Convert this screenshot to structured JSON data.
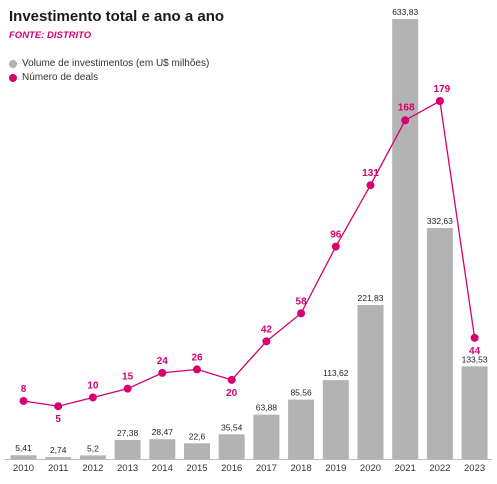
{
  "header": {
    "title": "Investimento total e ano a ano",
    "source": "FONTE: DISTRITO"
  },
  "legend": {
    "bars_label": "Volume de investimentos (em U$ milhões)",
    "deals_label": "Número de deals"
  },
  "colors": {
    "bars": "#b3b3b3",
    "deals": "#d6006e"
  },
  "chart_data": {
    "type": "bar",
    "categories": [
      "2010",
      "2011",
      "2012",
      "2013",
      "2014",
      "2015",
      "2016",
      "2017",
      "2018",
      "2019",
      "2020",
      "2021",
      "2022",
      "2023"
    ],
    "series": [
      {
        "name": "Volume de investimentos (em U$ milhões)",
        "type": "bar",
        "values": [
          5.41,
          2.74,
          5.2,
          27.38,
          28.47,
          22.6,
          35.54,
          63.88,
          85.56,
          113.62,
          221.83,
          633.83,
          332.63,
          133.53
        ],
        "labels": [
          "5,41",
          "2,74",
          "5,2",
          "27,38",
          "28,47",
          "22,6",
          "35,54",
          "63,88",
          "85,56",
          "113,62",
          "221,83",
          "633,83",
          "332,63",
          "133,53"
        ]
      },
      {
        "name": "Número de deals",
        "type": "line",
        "values": [
          8,
          5,
          10,
          15,
          24,
          26,
          20,
          42,
          58,
          96,
          131,
          168,
          179,
          44
        ],
        "labels": [
          "8",
          "5",
          "10",
          "15",
          "24",
          "26",
          "20",
          "42",
          "58",
          "96",
          "131",
          "168",
          "179",
          "44"
        ]
      }
    ],
    "legend_position": "top-left",
    "grid": false
  }
}
